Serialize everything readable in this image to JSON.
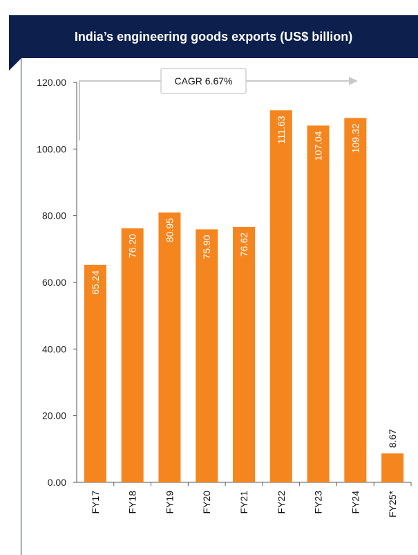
{
  "header": {
    "title": "India’s engineering goods exports (US$ billion)"
  },
  "annotation": {
    "text": "CAGR 6.67%"
  },
  "colors": {
    "header": "#0c1f4d",
    "bar": "#f5861f",
    "axis": "#555555",
    "arrow": "#c8c8c8"
  },
  "chart_data": {
    "type": "bar",
    "title": "India’s engineering goods exports (US$ billion)",
    "categories": [
      "FY17",
      "FY18",
      "FY19",
      "FY20",
      "FY21",
      "FY22",
      "FY23",
      "FY24",
      "FY25*"
    ],
    "values": [
      65.24,
      76.2,
      80.95,
      75.9,
      76.62,
      111.63,
      107.04,
      109.32,
      8.67
    ],
    "value_labels": [
      "65.24",
      "76.20",
      "80.95",
      "75.90",
      "76.62",
      "111.63",
      "107.04",
      "109.32",
      "8.67"
    ],
    "yticks": [
      "0.00",
      "20.00",
      "40.00",
      "60.00",
      "80.00",
      "100.00",
      "120.00"
    ],
    "ylim": [
      0,
      120
    ],
    "grid": false,
    "legend": "none",
    "annotation": "CAGR 6.67%"
  }
}
